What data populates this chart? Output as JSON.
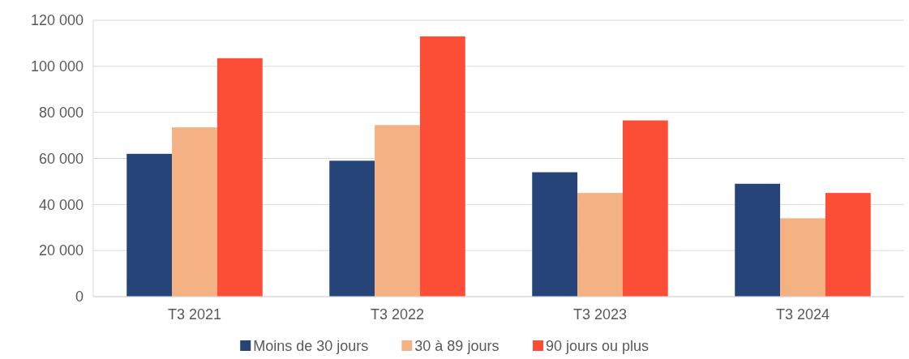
{
  "chart_data": {
    "type": "bar",
    "categories": [
      "T3 2021",
      "T3 2022",
      "T3 2023",
      "T3 2024"
    ],
    "series": [
      {
        "name": "Moins de 30 jours",
        "color": "#264478",
        "values": [
          62000,
          59000,
          54000,
          49000
        ]
      },
      {
        "name": "30 à 89 jours",
        "color": "#f4b183",
        "values": [
          73500,
          74500,
          45000,
          34000
        ]
      },
      {
        "name": "90 jours ou plus",
        "color": "#fc4e37",
        "values": [
          103500,
          113000,
          76500,
          45000
        ]
      }
    ],
    "ylim": [
      0,
      120000
    ],
    "yticks": [
      {
        "value": 0,
        "label": "0"
      },
      {
        "value": 20000,
        "label": "20 000"
      },
      {
        "value": 40000,
        "label": "40 000"
      },
      {
        "value": 60000,
        "label": "60 000"
      },
      {
        "value": 80000,
        "label": "80 000"
      },
      {
        "value": 100000,
        "label": "100 000"
      },
      {
        "value": 120000,
        "label": "120 000"
      }
    ],
    "grid": "y",
    "legend": "bottom"
  }
}
